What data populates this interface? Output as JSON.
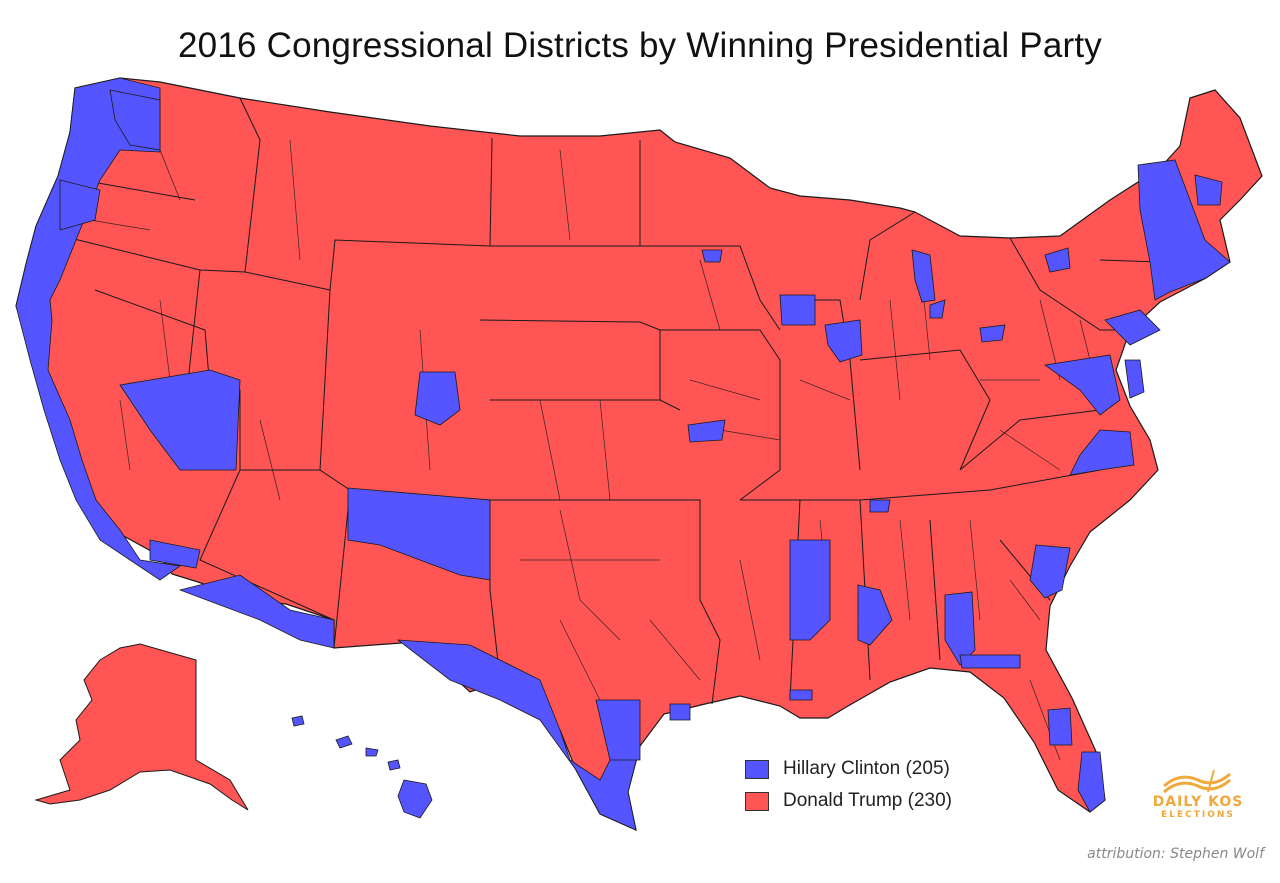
{
  "title": "2016 Congressional Districts by Winning Presidential Party",
  "legend": {
    "items": [
      {
        "label": "Hillary Clinton (205)",
        "color": "#5555ff"
      },
      {
        "label": "Donald Trump (230)",
        "color": "#ff5555"
      }
    ]
  },
  "colors": {
    "clinton": "#5555ff",
    "trump": "#ff5555",
    "border": "#1a1a1a",
    "logo": "#f0a93a"
  },
  "logo": {
    "line1": "DAILY KOS",
    "line2": "ELECTIONS"
  },
  "attribution": "attribution: Stephen Wolf"
}
